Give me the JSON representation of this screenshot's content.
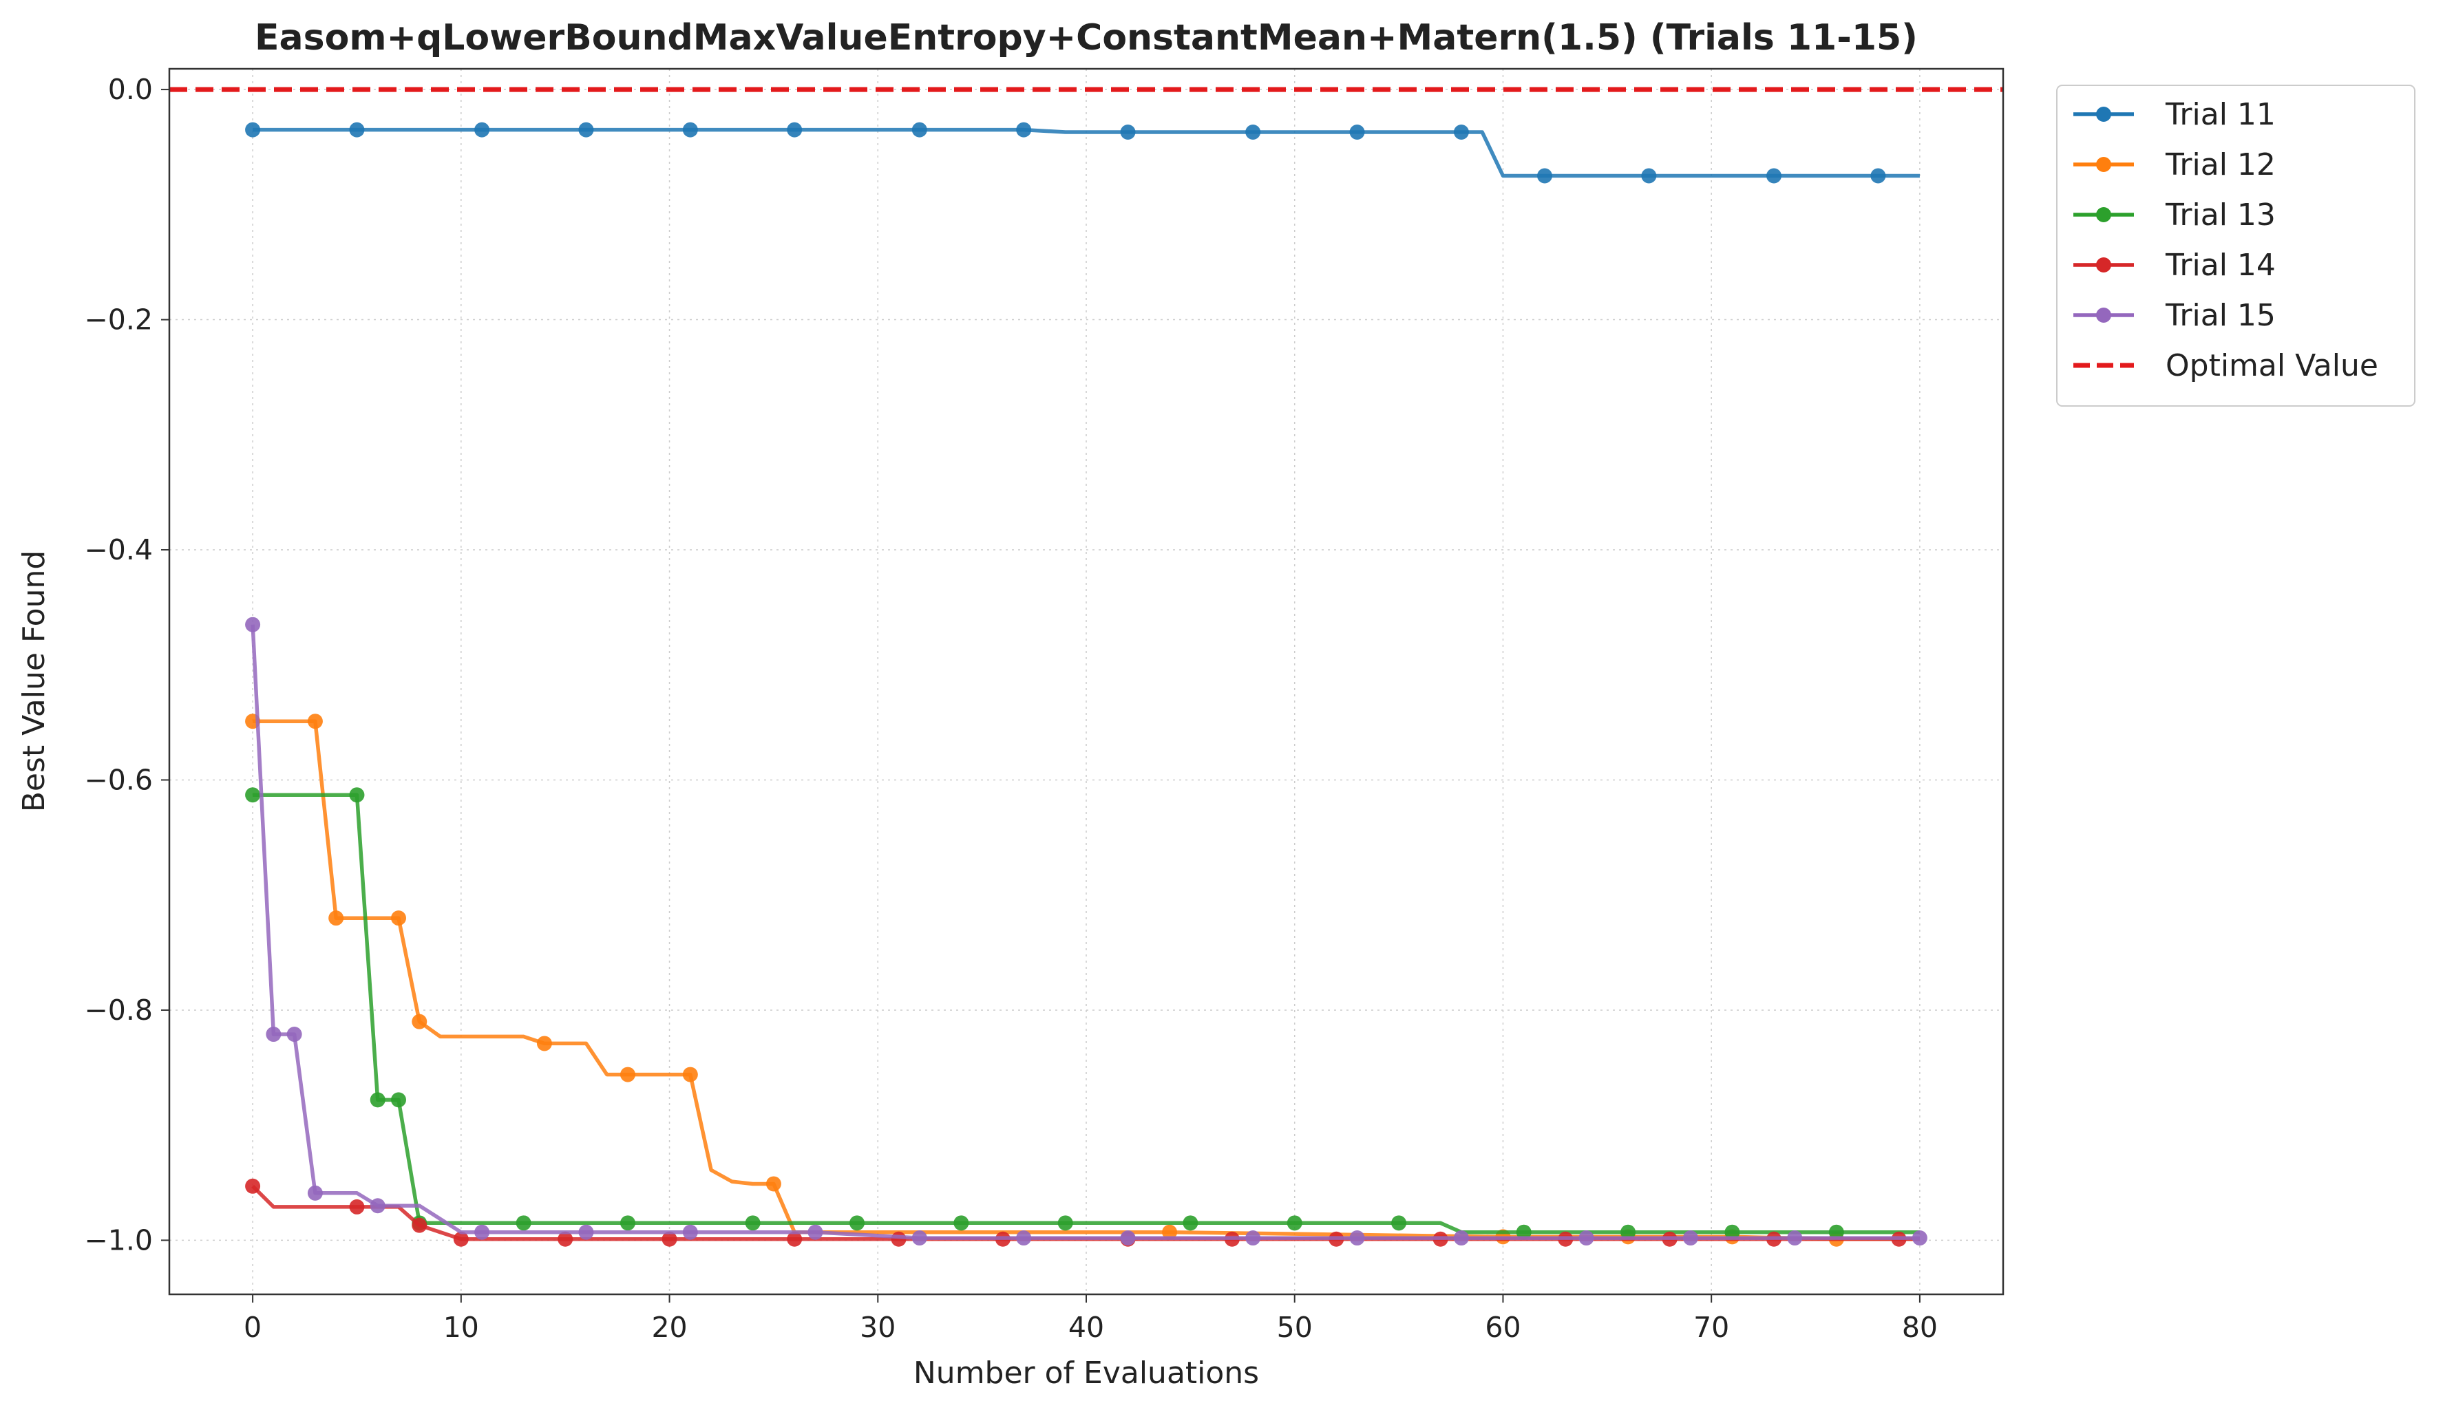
{
  "chart_data": {
    "type": "line",
    "title": "Easom+qLowerBoundMaxValueEntropy+ConstantMean+Matern(1.5) (Trials 11-15)",
    "xlabel": "Number of Evaluations",
    "ylabel": "Best Value Found",
    "xlim": [
      -4,
      84
    ],
    "ylim": [
      -1.047,
      0.018
    ],
    "x_ticks": [
      0,
      10,
      20,
      30,
      40,
      50,
      60,
      70,
      80
    ],
    "y_ticks": [
      0.0,
      -0.2,
      -0.4,
      -0.6,
      -0.8,
      -1.0
    ],
    "x_tick_labels": [
      "0",
      "10",
      "20",
      "30",
      "40",
      "50",
      "60",
      "70",
      "80"
    ],
    "y_tick_labels": [
      "0.0",
      "−0.2",
      "−0.4",
      "−0.6",
      "−0.8",
      "−1.0"
    ],
    "grid": true,
    "legend_position": "outside-top-right",
    "series": [
      {
        "name": "Trial 11",
        "color": "#1f77b4",
        "x": [
          0,
          5,
          11,
          16,
          21,
          26,
          32,
          37,
          39,
          42,
          48,
          53,
          58,
          59,
          60,
          62,
          67,
          73,
          78,
          80
        ],
        "y": [
          -0.035,
          -0.035,
          -0.035,
          -0.035,
          -0.035,
          -0.035,
          -0.035,
          -0.035,
          -0.037,
          -0.037,
          -0.037,
          -0.037,
          -0.037,
          -0.037,
          -0.075,
          -0.075,
          -0.075,
          -0.075,
          -0.075,
          -0.075
        ],
        "markers": [
          0,
          5,
          11,
          16,
          21,
          26,
          32,
          37,
          42,
          48,
          53,
          58,
          62,
          67,
          73,
          78
        ]
      },
      {
        "name": "Trial 12",
        "color": "#ff7f0e",
        "x": [
          0,
          3,
          4,
          6,
          7,
          8,
          9,
          13,
          14,
          16,
          17,
          18,
          21,
          22,
          23,
          24,
          25,
          26,
          30,
          44,
          60,
          71,
          76,
          80
        ],
        "y": [
          -0.549,
          -0.549,
          -0.72,
          -0.72,
          -0.72,
          -0.81,
          -0.823,
          -0.823,
          -0.829,
          -0.829,
          -0.856,
          -0.856,
          -0.856,
          -0.939,
          -0.949,
          -0.951,
          -0.951,
          -0.993,
          -0.993,
          -0.993,
          -0.997,
          -0.997,
          -0.999,
          -0.999
        ],
        "markers": [
          0,
          3,
          4,
          7,
          8,
          14,
          18,
          21,
          25,
          44,
          60,
          66,
          71,
          76
        ]
      },
      {
        "name": "Trial 13",
        "color": "#2ca02c",
        "x": [
          0,
          5,
          6,
          7,
          8,
          13,
          18,
          24,
          29,
          34,
          39,
          45,
          50,
          55,
          57,
          58,
          61,
          66,
          71,
          76,
          80
        ],
        "y": [
          -0.613,
          -0.613,
          -0.878,
          -0.878,
          -0.985,
          -0.985,
          -0.985,
          -0.985,
          -0.985,
          -0.985,
          -0.985,
          -0.985,
          -0.985,
          -0.985,
          -0.985,
          -0.993,
          -0.993,
          -0.993,
          -0.993,
          -0.993,
          -0.993
        ],
        "markers": [
          0,
          5,
          6,
          7,
          8,
          13,
          18,
          24,
          29,
          34,
          39,
          45,
          50,
          55,
          61,
          66,
          71,
          76
        ]
      },
      {
        "name": "Trial 14",
        "color": "#d62728",
        "x": [
          0,
          1,
          5,
          7,
          8,
          10,
          15,
          20,
          26,
          31,
          36,
          42,
          47,
          52,
          57,
          63,
          68,
          73,
          79,
          80
        ],
        "y": [
          -0.953,
          -0.971,
          -0.971,
          -0.971,
          -0.987,
          -0.999,
          -0.999,
          -0.999,
          -0.999,
          -0.999,
          -0.999,
          -0.999,
          -0.999,
          -0.999,
          -0.999,
          -0.999,
          -0.999,
          -0.999,
          -0.999,
          -0.999
        ],
        "markers": [
          0,
          5,
          8,
          10,
          15,
          20,
          26,
          31,
          36,
          42,
          47,
          52,
          57,
          63,
          68,
          73,
          79
        ]
      },
      {
        "name": "Trial 15",
        "color": "#9467bd",
        "x": [
          0,
          1,
          2,
          3,
          5,
          6,
          8,
          10,
          11,
          16,
          21,
          27,
          32,
          37,
          42,
          48,
          53,
          58,
          64,
          69,
          74,
          80
        ],
        "y": [
          -0.465,
          -0.821,
          -0.821,
          -0.959,
          -0.959,
          -0.97,
          -0.97,
          -0.993,
          -0.993,
          -0.993,
          -0.993,
          -0.993,
          -0.998,
          -0.998,
          -0.998,
          -0.998,
          -0.998,
          -0.998,
          -0.998,
          -0.998,
          -0.998,
          -0.998
        ],
        "markers": [
          0,
          1,
          2,
          3,
          6,
          11,
          16,
          21,
          27,
          32,
          37,
          42,
          48,
          53,
          58,
          64,
          69,
          74,
          80
        ]
      }
    ],
    "reference_line": {
      "name": "Optimal Value",
      "y": 0.0,
      "color": "#e31a1c",
      "style": "dashed"
    }
  }
}
